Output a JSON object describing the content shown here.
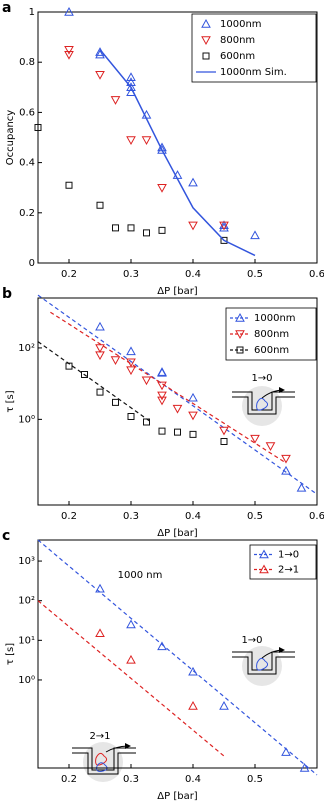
{
  "chart_data": [
    {
      "type": "scatter",
      "panel": "a",
      "xlabel": "ΔP [bar]",
      "ylabel": "Occupancy",
      "xlim": [
        0.15,
        0.6
      ],
      "ylim": [
        0,
        1
      ],
      "xticks": [
        0.2,
        0.3,
        0.4,
        0.5,
        0.6
      ],
      "yticks": [
        0,
        0.2,
        0.4,
        0.6,
        0.8,
        1
      ],
      "log_y": false,
      "grid": false,
      "legend": "upper right",
      "series": [
        {
          "name": "1000nm",
          "color": "#3355dd",
          "marker": "triangle-up",
          "x": [
            0.2,
            0.25,
            0.25,
            0.3,
            0.3,
            0.3,
            0.3,
            0.325,
            0.35,
            0.35,
            0.375,
            0.4,
            0.45,
            0.45,
            0.5
          ],
          "values": [
            1.0,
            0.84,
            0.83,
            0.74,
            0.72,
            0.7,
            0.68,
            0.59,
            0.46,
            0.45,
            0.35,
            0.32,
            0.15,
            0.14,
            0.11
          ]
        },
        {
          "name": "800nm",
          "color": "#dd2222",
          "marker": "triangle-down",
          "x": [
            0.2,
            0.2,
            0.25,
            0.275,
            0.3,
            0.325,
            0.35,
            0.4,
            0.45
          ],
          "values": [
            0.85,
            0.83,
            0.75,
            0.65,
            0.49,
            0.49,
            0.3,
            0.15,
            0.15
          ]
        },
        {
          "name": "600nm",
          "color": "#111111",
          "marker": "square",
          "x": [
            0.15,
            0.2,
            0.25,
            0.275,
            0.3,
            0.325,
            0.35,
            0.45
          ],
          "values": [
            0.54,
            0.31,
            0.23,
            0.14,
            0.14,
            0.12,
            0.13,
            0.09
          ]
        },
        {
          "name": "1000nm Sim.",
          "color": "#3355dd",
          "marker": "line",
          "x": [
            0.25,
            0.3,
            0.35,
            0.4,
            0.45,
            0.5
          ],
          "values": [
            0.85,
            0.7,
            0.45,
            0.22,
            0.09,
            0.03
          ]
        }
      ]
    },
    {
      "type": "scatter",
      "panel": "b",
      "xlabel": "ΔP [bar]",
      "ylabel": "τ [s]",
      "xlim": [
        0.15,
        0.6
      ],
      "ylim": [
        0.004,
        2500
      ],
      "xticks": [
        0.2,
        0.3,
        0.4,
        0.5,
        0.6
      ],
      "yticks": [
        {
          "value": 1,
          "label": "10⁰"
        },
        {
          "value": 100,
          "label": "10²"
        }
      ],
      "log_y": true,
      "grid": false,
      "legend": "upper right",
      "annotations": [
        "1→0"
      ],
      "series": [
        {
          "name": "1000nm",
          "color": "#3355dd",
          "marker": "triangle-up",
          "x": [
            0.25,
            0.3,
            0.35,
            0.35,
            0.4,
            0.55,
            0.575
          ],
          "values": [
            390,
            80,
            21,
            20,
            4,
            0.036,
            0.012
          ],
          "fit": {
            "x": [
              0.15,
              0.6
            ],
            "values": [
              3000,
              0.008
            ]
          }
        },
        {
          "name": "800nm",
          "color": "#dd2222",
          "marker": "triangle-down",
          "x": [
            0.25,
            0.25,
            0.275,
            0.3,
            0.3,
            0.325,
            0.35,
            0.35,
            0.35,
            0.375,
            0.4,
            0.45,
            0.5,
            0.525,
            0.55
          ],
          "values": [
            100,
            63,
            46,
            40,
            24,
            12.5,
            9,
            4.7,
            3.4,
            2,
            1.3,
            0.49,
            0.29,
            0.18,
            0.08
          ],
          "fit": {
            "x": [
              0.17,
              0.55
            ],
            "values": [
              1000,
              0.06
            ]
          }
        },
        {
          "name": "600nm",
          "color": "#111111",
          "marker": "square",
          "x": [
            0.2,
            0.225,
            0.25,
            0.275,
            0.3,
            0.325,
            0.35,
            0.375,
            0.4,
            0.45
          ],
          "values": [
            31,
            18,
            5.8,
            3,
            1.2,
            0.84,
            0.47,
            0.44,
            0.38,
            0.24
          ],
          "fit": {
            "x": [
              0.15,
              0.33
            ],
            "values": [
              150,
              0.9
            ]
          }
        }
      ]
    },
    {
      "type": "scatter",
      "panel": "c",
      "xlabel": "ΔP [bar]",
      "ylabel": "τ [s]",
      "xlim": [
        0.15,
        0.6
      ],
      "ylim": [
        0.006,
        3400
      ],
      "xticks": [
        0.2,
        0.3,
        0.4,
        0.5
      ],
      "yticks": [
        {
          "value": 1,
          "label": "10⁰"
        },
        {
          "value": 10,
          "label": "10¹"
        },
        {
          "value": 100,
          "label": "10²"
        },
        {
          "value": 1000,
          "label": "10³"
        }
      ],
      "log_y": true,
      "grid": false,
      "legend": "upper right",
      "annotations": [
        "1000 nm",
        "1→0",
        "2→1"
      ],
      "series": [
        {
          "name": "1→0",
          "color": "#3355dd",
          "marker": "triangle-up",
          "x": [
            0.25,
            0.3,
            0.35,
            0.4,
            0.45,
            0.55,
            0.58
          ],
          "values": [
            200,
            25,
            7,
            1.6,
            0.22,
            0.015,
            0.006
          ],
          "fit": {
            "x": [
              0.15,
              0.6
            ],
            "values": [
              3400,
              0.004
            ]
          }
        },
        {
          "name": "2→1",
          "color": "#dd2222",
          "marker": "triangle-up",
          "x": [
            0.25,
            0.3,
            0.4
          ],
          "values": [
            15,
            3.2,
            0.22
          ],
          "fit": {
            "x": [
              0.15,
              0.45
            ],
            "values": [
              100,
              0.012
            ]
          }
        }
      ]
    }
  ]
}
